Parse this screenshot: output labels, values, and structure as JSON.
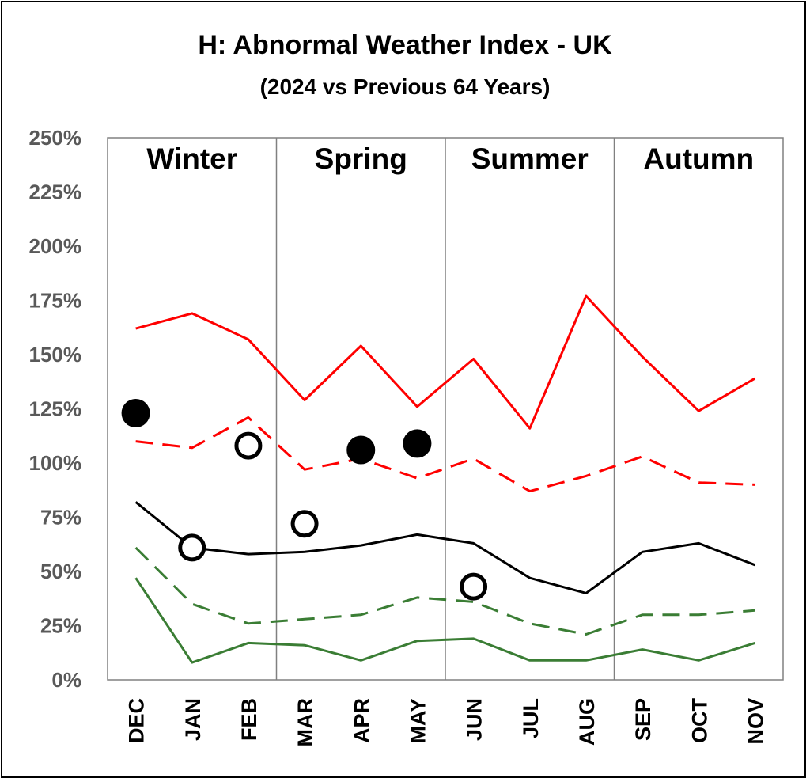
{
  "chart_data": {
    "type": "line",
    "title": "H: Abnormal Weather Index - UK",
    "subtitle": "(2024 vs Previous 64 Years)",
    "xlabel": "",
    "ylabel": "",
    "ylim": [
      0,
      250
    ],
    "y_ticks": [
      "0%",
      "25%",
      "50%",
      "75%",
      "100%",
      "125%",
      "150%",
      "175%",
      "200%",
      "225%",
      "250%"
    ],
    "categories": [
      "DEC",
      "JAN",
      "FEB",
      "MAR",
      "APR",
      "MAY",
      "JUN",
      "JUL",
      "AUG",
      "SEP",
      "OCT",
      "NOV"
    ],
    "seasons": [
      "Winter",
      "Spring",
      "Summer",
      "Autumn"
    ],
    "grid": false,
    "legend": "none",
    "series": [
      {
        "style": "solid",
        "color": "#ff0000",
        "values": [
          162,
          169,
          157,
          129,
          154,
          126,
          148,
          116,
          177,
          149,
          124,
          139
        ]
      },
      {
        "style": "dashed",
        "color": "#ff0000",
        "values": [
          110,
          107,
          121,
          97,
          102,
          93,
          102,
          87,
          94,
          103,
          91,
          90
        ]
      },
      {
        "style": "solid",
        "color": "#000000",
        "values": [
          82,
          61,
          58,
          59,
          62,
          67,
          63,
          47,
          40,
          59,
          63,
          53
        ]
      },
      {
        "style": "dashed",
        "color": "#3a7d34",
        "values": [
          61,
          35,
          26,
          28,
          30,
          38,
          36,
          26,
          21,
          30,
          30,
          32
        ]
      },
      {
        "style": "solid",
        "color": "#3a7d34",
        "values": [
          47,
          8,
          17,
          16,
          9,
          18,
          19,
          9,
          9,
          14,
          9,
          17
        ]
      }
    ],
    "points_2024": [
      {
        "category": "DEC",
        "value": 123,
        "fill": "filled"
      },
      {
        "category": "JAN",
        "value": 61,
        "fill": "open"
      },
      {
        "category": "FEB",
        "value": 108,
        "fill": "open"
      },
      {
        "category": "MAR",
        "value": 72,
        "fill": "open"
      },
      {
        "category": "APR",
        "value": 106,
        "fill": "filled"
      },
      {
        "category": "MAY",
        "value": 109,
        "fill": "filled"
      },
      {
        "category": "JUN",
        "value": 43,
        "fill": "open"
      }
    ]
  }
}
